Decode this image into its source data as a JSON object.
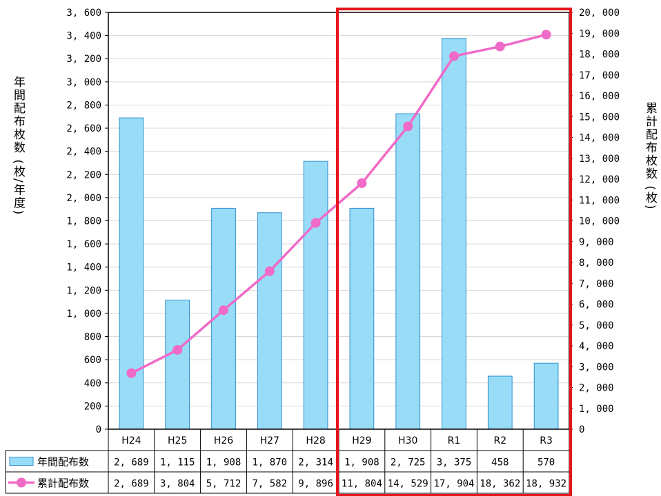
{
  "chart_data": {
    "type": "bar",
    "categories": [
      "H24",
      "H25",
      "H26",
      "H27",
      "H28",
      "H29",
      "H30",
      "R1",
      "R2",
      "R3"
    ],
    "series": [
      {
        "name": "年間配布数",
        "type": "bar",
        "axis": "left",
        "values": [
          2689,
          1115,
          1908,
          1870,
          2314,
          1908,
          2725,
          3375,
          458,
          570
        ],
        "labels": [
          "2, 689",
          "1, 115",
          "1, 908",
          "1, 870",
          "2, 314",
          "1, 908",
          "2, 725",
          "3, 375",
          "458",
          "570"
        ]
      },
      {
        "name": "累計配布数",
        "type": "line",
        "axis": "right",
        "values": [
          2689,
          3804,
          5712,
          7582,
          9896,
          11804,
          14529,
          17904,
          18362,
          18932
        ],
        "labels": [
          "2, 689",
          "3, 804",
          "5, 712",
          "7, 582",
          "9, 896",
          "11, 804",
          "14, 529",
          "17, 904",
          "18, 362",
          "18, 932"
        ]
      }
    ],
    "ylabel": "年間配布枚数 (枚/年度)",
    "y2label": "累計配布枚数 (枚)",
    "ylim": [
      0,
      3600
    ],
    "y2lim": [
      0,
      20000
    ],
    "yticks": [
      "0",
      "200",
      "400",
      "600",
      "800",
      "1,000",
      "1,200",
      "1,400",
      "1,600",
      "1,800",
      "2,000",
      "2,200",
      "2,400",
      "2,600",
      "2,800",
      "3,000",
      "3,200",
      "3,400",
      "3,600"
    ],
    "y2ticks": [
      "0",
      "1,000",
      "2,000",
      "3,000",
      "4,000",
      "5,000",
      "6,000",
      "7,000",
      "8,000",
      "9,000",
      "10,000",
      "11,000",
      "12,000",
      "13,000",
      "14,000",
      "15,000",
      "16,000",
      "17,000",
      "18,000",
      "19,000",
      "20,000"
    ],
    "grid": true,
    "legend": "data-table",
    "highlight": {
      "from": "H29",
      "to": "R3",
      "color": "#e8141c"
    },
    "colors": {
      "bar_fill": "#99dcf8",
      "bar_stroke": "#2f8fcf",
      "line": "#f06ac7",
      "marker": "#f06ac7",
      "grid": "#d8d8d8",
      "frame": "#000000"
    }
  }
}
